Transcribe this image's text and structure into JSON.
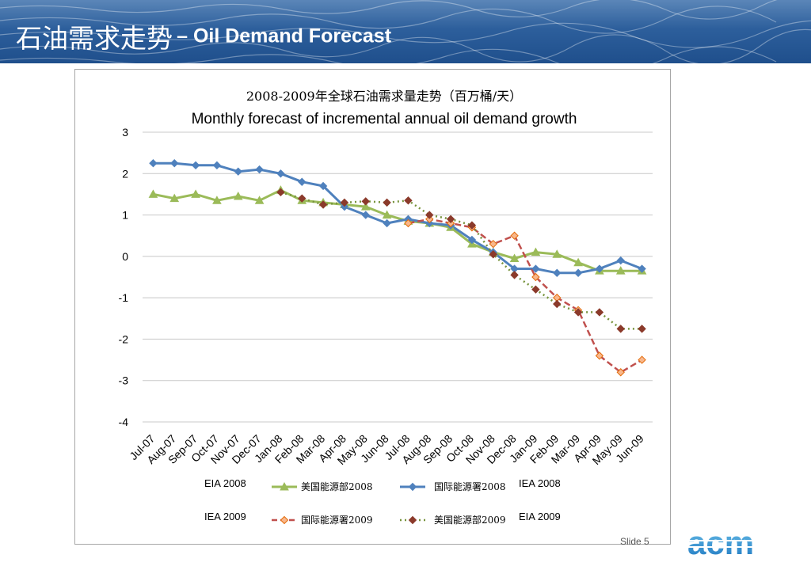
{
  "slide": {
    "title_zh": "石油需求走势",
    "title_en": "– Oil Demand Forecast",
    "slide_number": "Slide 5",
    "logo_text": "acm"
  },
  "chart_data": {
    "type": "line",
    "title": "2008-2009年全球石油需求量走势（百万桶/天）",
    "subtitle": "Monthly forecast of incremental annual oil demand growth",
    "categories": [
      "Jul-07",
      "Aug-07",
      "Sep-07",
      "Oct-07",
      "Nov-07",
      "Dec-07",
      "Jan-08",
      "Feb-08",
      "Mar-08",
      "Apr-08",
      "May-08",
      "Jun-08",
      "Jul-08",
      "Aug-08",
      "Sep-08",
      "Oct-08",
      "Nov-08",
      "Dec-08",
      "Jan-09",
      "Feb-09",
      "Mar-09",
      "Apr-09",
      "May-09",
      "Jun-09"
    ],
    "ylim": [
      -4,
      3
    ],
    "yticks": [
      "3",
      "2",
      "1",
      "0",
      "-1",
      "-2",
      "-3",
      "-4"
    ],
    "grid": true,
    "legend_position": "bottom",
    "series": [
      {
        "name": "美国能源部2008",
        "tag": "EIA 2008",
        "color": "#9bbb59",
        "marker": "triangle",
        "style": "solid",
        "values": [
          1.5,
          1.4,
          1.5,
          1.35,
          1.45,
          1.35,
          1.6,
          1.35,
          1.3,
          1.25,
          1.2,
          1.0,
          0.85,
          0.8,
          0.7,
          0.3,
          0.1,
          -0.05,
          0.1,
          0.05,
          -0.15,
          -0.35,
          -0.35,
          -0.35
        ]
      },
      {
        "name": "国际能源署2008",
        "tag": "IEA 2008",
        "color": "#4f81bd",
        "marker": "diamond",
        "style": "solid",
        "values": [
          2.25,
          2.25,
          2.2,
          2.2,
          2.05,
          2.1,
          2.0,
          1.8,
          1.7,
          1.2,
          1.0,
          0.8,
          0.9,
          0.8,
          0.75,
          0.4,
          0.1,
          -0.3,
          -0.3,
          -0.4,
          -0.4,
          -0.3,
          -0.1,
          -0.3
        ]
      },
      {
        "name": "国际能源署2009",
        "tag": "IEA 2009",
        "color": "#f8b78c",
        "line_color": "#c0504d",
        "marker": "diamond",
        "style": "dashed",
        "values": [
          null,
          null,
          null,
          null,
          null,
          null,
          null,
          null,
          null,
          null,
          null,
          null,
          0.8,
          0.9,
          0.8,
          0.7,
          0.3,
          0.5,
          -0.5,
          -1.0,
          -1.3,
          -2.4,
          -2.8,
          -2.5
        ]
      },
      {
        "name": "美国能源部2009",
        "tag": "EIA 2009",
        "color": "#8b3a2b",
        "line_color": "#77933c",
        "marker": "diamond",
        "style": "dotted",
        "values": [
          null,
          null,
          null,
          null,
          null,
          null,
          1.55,
          1.4,
          1.25,
          1.3,
          1.33,
          1.3,
          1.35,
          1.0,
          0.9,
          0.75,
          0.05,
          -0.45,
          -0.8,
          -1.15,
          -1.35,
          -1.35,
          -1.75,
          -1.75
        ]
      }
    ]
  }
}
